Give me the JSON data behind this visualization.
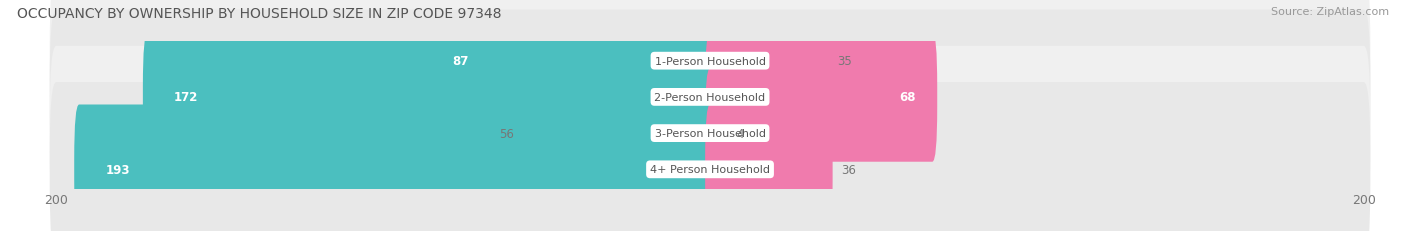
{
  "title": "OCCUPANCY BY OWNERSHIP BY HOUSEHOLD SIZE IN ZIP CODE 97348",
  "source": "Source: ZipAtlas.com",
  "categories": [
    "1-Person Household",
    "2-Person Household",
    "3-Person Household",
    "4+ Person Household"
  ],
  "owner_values": [
    87,
    172,
    56,
    193
  ],
  "renter_values": [
    35,
    68,
    4,
    36
  ],
  "owner_color": "#4BBFBF",
  "renter_color": "#F07BAD",
  "row_bg_colors": [
    "#F0F0F0",
    "#E8E8E8",
    "#F0F0F0",
    "#E8E8E8"
  ],
  "axis_max": 200,
  "title_fontsize": 10,
  "source_fontsize": 8,
  "bar_label_fontsize": 8.5,
  "legend_fontsize": 9,
  "category_fontsize": 8,
  "axis_label_fontsize": 9,
  "figsize": [
    14.06,
    2.32
  ],
  "dpi": 100
}
